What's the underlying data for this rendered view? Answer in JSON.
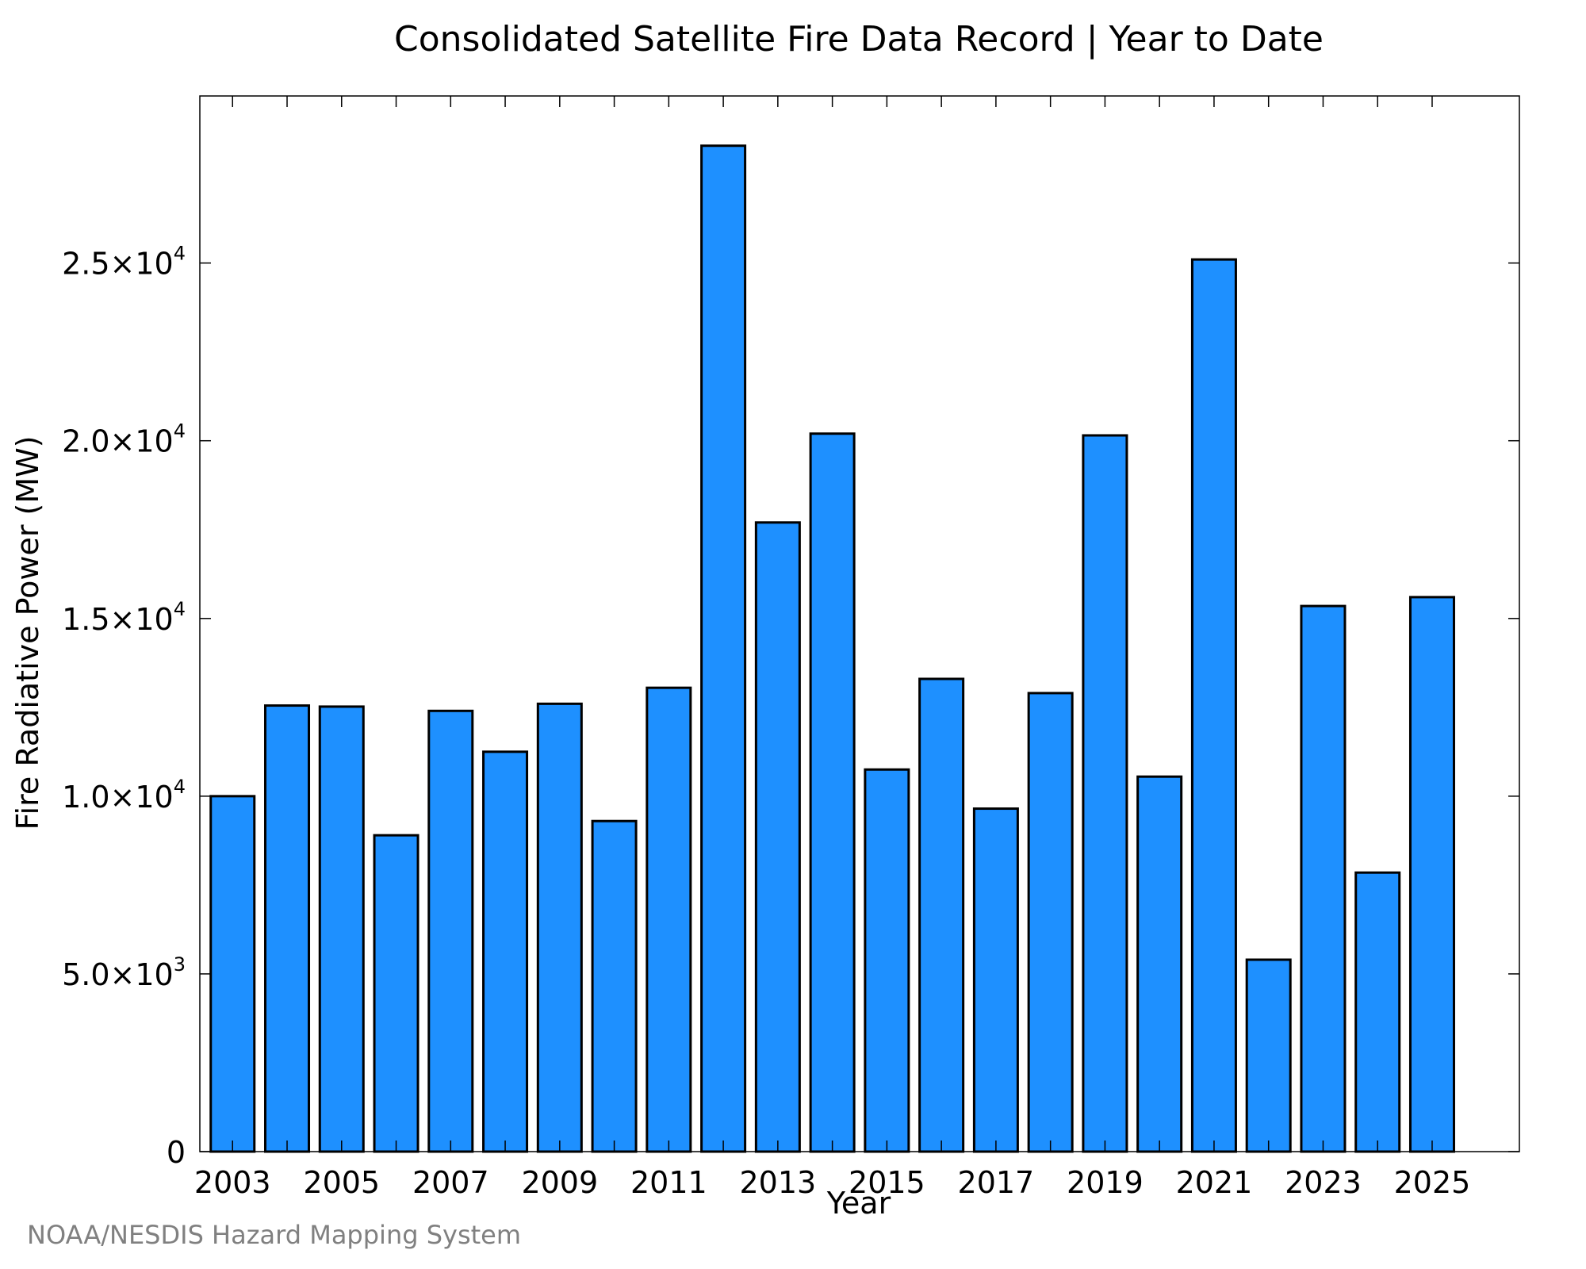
{
  "chart_data": {
    "type": "bar",
    "title": "Consolidated Satellite Fire Data Record | Year to Date",
    "xlabel": "Year",
    "ylabel": "Fire Radiative Power (MW)",
    "categories": [
      "2003",
      "2004",
      "2005",
      "2006",
      "2007",
      "2008",
      "2009",
      "2010",
      "2011",
      "2012",
      "2013",
      "2014",
      "2015",
      "2016",
      "2017",
      "2018",
      "2019",
      "2020",
      "2021",
      "2022",
      "2023",
      "2024",
      "2025"
    ],
    "values": [
      10000,
      12550,
      12520,
      8900,
      12400,
      11250,
      12600,
      9300,
      13050,
      28300,
      17700,
      20200,
      10750,
      13300,
      9650,
      12900,
      20150,
      10550,
      25100,
      5400,
      15350,
      7850,
      15600
    ],
    "x_tick_labels": [
      "2003",
      "2005",
      "2007",
      "2009",
      "2011",
      "2013",
      "2015",
      "2017",
      "2019",
      "2021",
      "2023",
      "2025"
    ],
    "y_ticks": [
      {
        "value": 0,
        "mantissa": "0",
        "exp": ""
      },
      {
        "value": 5000,
        "mantissa": "5.0×10",
        "exp": "3"
      },
      {
        "value": 10000,
        "mantissa": "1.0×10",
        "exp": "4"
      },
      {
        "value": 15000,
        "mantissa": "1.5×10",
        "exp": "4"
      },
      {
        "value": 20000,
        "mantissa": "2.0×10",
        "exp": "4"
      },
      {
        "value": 25000,
        "mantissa": "2.5×10",
        "exp": "4"
      }
    ],
    "ylim": [
      0,
      29700
    ],
    "xlim": [
      2002.4,
      2026.6
    ],
    "bar_color": "#1e90ff",
    "grid": false,
    "legend": "none"
  },
  "credit": "NOAA/NESDIS Hazard Mapping System"
}
